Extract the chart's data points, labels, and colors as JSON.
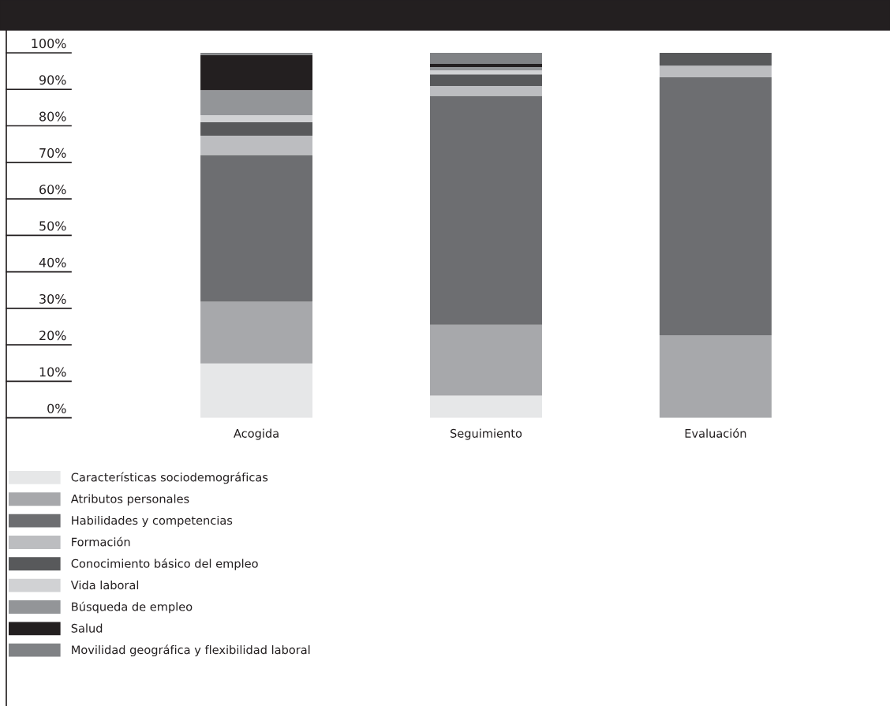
{
  "chart_data": {
    "type": "bar",
    "stacked": true,
    "categories": [
      "Acogida",
      "Seguimiento",
      "Evaluación"
    ],
    "ylim": [
      0,
      100
    ],
    "yticks": [
      {
        "value": 0,
        "label": "0%"
      },
      {
        "value": 10,
        "label": "10%"
      },
      {
        "value": 20,
        "label": "20%"
      },
      {
        "value": 30,
        "label": "30%"
      },
      {
        "value": 40,
        "label": "40%"
      },
      {
        "value": 50,
        "label": "50%"
      },
      {
        "value": 60,
        "label": "60%"
      },
      {
        "value": 70,
        "label": "70%"
      },
      {
        "value": 80,
        "label": "80%"
      },
      {
        "value": 90,
        "label": "90%"
      },
      {
        "value": 100,
        "label": "100%"
      }
    ],
    "legend": "bottom",
    "grid": false,
    "series": [
      {
        "name": "Características sociodemográficas",
        "color": "#e6e7e8",
        "values": [
          14.9,
          6.1,
          0
        ]
      },
      {
        "name": "Atributos personales",
        "color": "#a7a8ab",
        "values": [
          16.9,
          19.4,
          22.6
        ]
      },
      {
        "name": "Habilidades y competencias",
        "color": "#6d6e71",
        "values": [
          40.2,
          62.7,
          70.7
        ]
      },
      {
        "name": "Formación",
        "color": "#bcbdc0",
        "values": [
          5.3,
          2.7,
          3.2
        ]
      },
      {
        "name": "Conocimiento básico del empleo",
        "color": "#58595b",
        "values": [
          3.7,
          3.2,
          3.5
        ]
      },
      {
        "name": "Vida laboral",
        "color": "#d1d2d4",
        "values": [
          1.9,
          1.1,
          0
        ]
      },
      {
        "name": "Búsqueda de empleo",
        "color": "#939598",
        "values": [
          6.9,
          0.9,
          0
        ]
      },
      {
        "name": "Salud",
        "color": "#231f20",
        "values": [
          9.6,
          0.9,
          0
        ]
      },
      {
        "name": "Movilidad geográfica y flexibilidad laboral",
        "color": "#808285",
        "values": [
          0.6,
          3.0,
          0
        ]
      }
    ]
  }
}
